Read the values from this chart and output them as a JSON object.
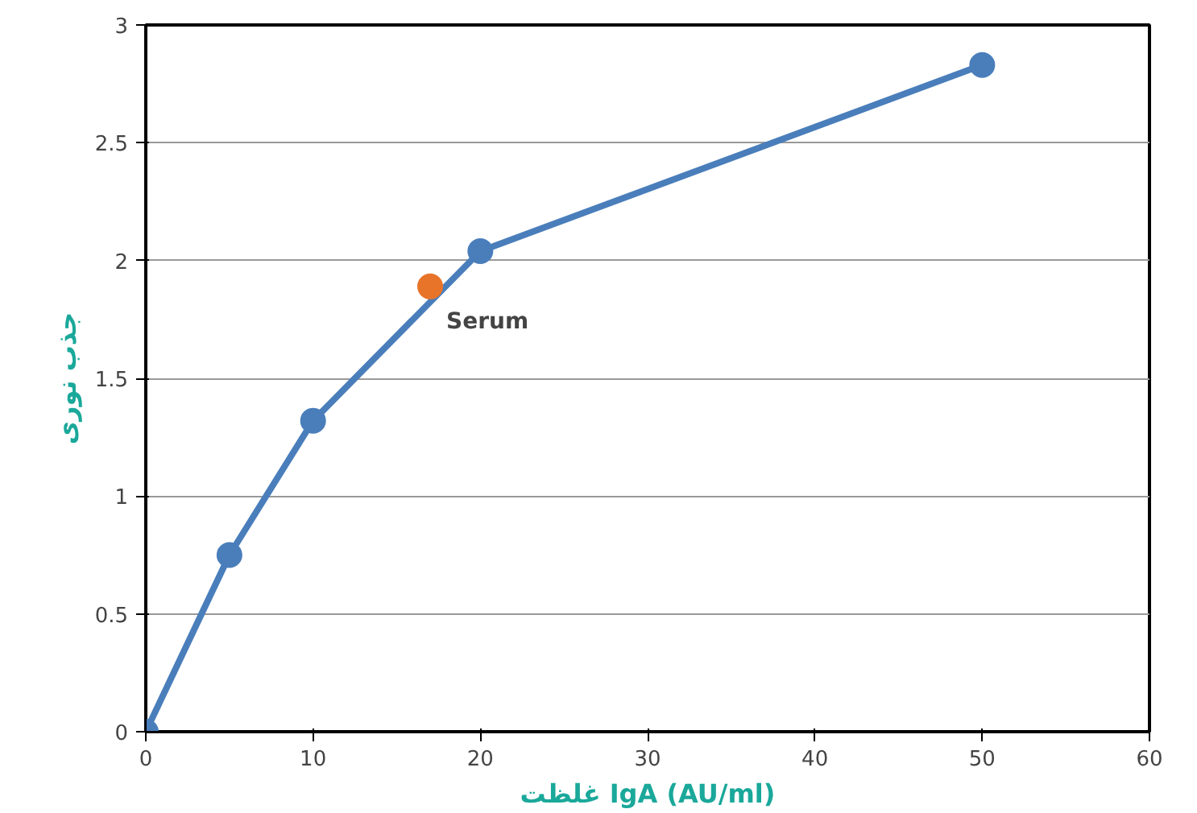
{
  "chart_data": {
    "type": "line",
    "xlabel": "غلظت IgA (AU/ml)",
    "ylabel": "جذب نوری",
    "xlim": [
      0,
      60
    ],
    "xticks": [
      0,
      10,
      20,
      30,
      40,
      50,
      60
    ],
    "ylim": [
      0,
      3
    ],
    "yticks": [
      0,
      0.5,
      1,
      1.5,
      2,
      2.5,
      3
    ],
    "grid": "y",
    "marker": "circle",
    "line_style": "solid",
    "series": [
      {
        "color": "#4a7ebb",
        "x": [
          0,
          5,
          10,
          20,
          50
        ],
        "values": [
          0,
          0.75,
          1.32,
          2.04,
          2.83
        ]
      },
      {
        "type": "scatter",
        "name": "Serum",
        "color": "#e8742a",
        "x": [
          17
        ],
        "values": [
          1.89
        ]
      }
    ]
  }
}
